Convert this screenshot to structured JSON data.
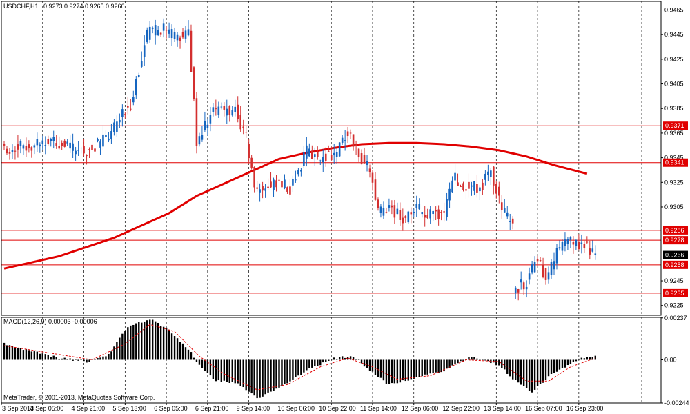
{
  "chart_data": [
    {
      "type": "candlestick",
      "title": "USDCHF,H1",
      "ohlc_readout": [
        "0.9273",
        "0.9274",
        "0.9265",
        "0.9266"
      ],
      "ylim": [
        0.9217,
        0.9472
      ],
      "y_ticks": [
        "0.9465",
        "0.9445",
        "0.9425",
        "0.9405",
        "0.9385",
        "0.9365",
        "0.9345",
        "0.9325",
        "0.9305",
        "0.9245",
        "0.9225"
      ],
      "bid_label": "0.9266",
      "bid_value": 0.9266,
      "horizontal_lines": [
        {
          "value": 0.9371,
          "label": "0.9371"
        },
        {
          "value": 0.9341,
          "label": "0.9341"
        },
        {
          "value": 0.9286,
          "label": "0.9286"
        },
        {
          "value": 0.9278,
          "label": "0.9278"
        },
        {
          "value": 0.9258,
          "label": "0.9258"
        },
        {
          "value": 0.9235,
          "label": "0.9235"
        }
      ],
      "moving_average": {
        "color": "#e00000",
        "points": [
          [
            0,
            0.9255
          ],
          [
            20,
            0.9265
          ],
          [
            40,
            0.928
          ],
          [
            60,
            0.93
          ],
          [
            70,
            0.9314
          ],
          [
            80,
            0.9324
          ],
          [
            90,
            0.9334
          ],
          [
            100,
            0.9344
          ],
          [
            110,
            0.9349
          ],
          [
            120,
            0.9353
          ],
          [
            130,
            0.9356
          ],
          [
            140,
            0.9357
          ],
          [
            150,
            0.9357
          ],
          [
            160,
            0.9356
          ],
          [
            170,
            0.9354
          ],
          [
            180,
            0.9351
          ],
          [
            190,
            0.9346
          ],
          [
            200,
            0.9339
          ],
          [
            212,
            0.9332
          ]
        ]
      },
      "candles_segments": [
        {
          "start": 0,
          "end": 185,
          "keys": [
            [
              0,
              0.9352
            ],
            [
              10,
              0.9356
            ],
            [
              18,
              0.936
            ],
            [
              24,
              0.9352
            ],
            [
              30,
              0.935
            ],
            [
              38,
              0.9362
            ],
            [
              46,
              0.939
            ],
            [
              52,
              0.9445
            ],
            [
              57,
              0.945
            ],
            [
              63,
              0.9442
            ],
            [
              67,
              0.9447
            ],
            [
              70,
              0.936
            ],
            [
              76,
              0.9383
            ],
            [
              84,
              0.9384
            ],
            [
              88,
              0.936
            ],
            [
              91,
              0.9321
            ],
            [
              95,
              0.932
            ],
            [
              99,
              0.9325
            ],
            [
              104,
              0.932
            ],
            [
              110,
              0.935
            ],
            [
              115,
              0.9345
            ],
            [
              121,
              0.935
            ],
            [
              125,
              0.9367
            ],
            [
              129,
              0.9348
            ],
            [
              133,
              0.9335
            ],
            [
              136,
              0.9301
            ],
            [
              140,
              0.9305
            ],
            [
              145,
              0.9295
            ],
            [
              150,
              0.9303
            ],
            [
              155,
              0.9298
            ],
            [
              160,
              0.9301
            ],
            [
              163,
              0.933
            ],
            [
              169,
              0.932
            ],
            [
              174,
              0.9323
            ],
            [
              177,
              0.9335
            ],
            [
              181,
              0.9301
            ],
            [
              185,
              0.9292
            ]
          ]
        },
        {
          "start": 186,
          "end": 215,
          "keys": [
            [
              186,
              0.924
            ],
            [
              190,
              0.9242
            ],
            [
              194,
              0.9265
            ],
            [
              197,
              0.9248
            ],
            [
              201,
              0.9268
            ],
            [
              205,
              0.9277
            ],
            [
              210,
              0.9275
            ],
            [
              215,
              0.9269
            ]
          ]
        }
      ],
      "x_tick_labels": [
        "3 Sep 2013",
        "4 Sep 05:00",
        "4 Sep 21:00",
        "5 Sep 13:00",
        "6 Sep 05:00",
        "6 Sep 21:00",
        "9 Sep 14:00",
        "10 Sep 06:00",
        "10 Sep 22:00",
        "11 Sep 14:00",
        "12 Sep 06:00",
        "12 Sep 22:00",
        "13 Sep 14:00",
        "16 Sep 07:00",
        "16 Sep 23:00"
      ],
      "x_tick_positions": [
        0,
        15,
        30,
        45,
        60,
        75,
        90,
        105,
        120,
        135,
        150,
        165,
        180,
        195,
        210
      ],
      "colors": {
        "up": "#1565c0",
        "down": "#d32f2f",
        "background": "#ffffff",
        "grid": "#000000",
        "level_line": "#e00000",
        "bid_line": "#808080"
      }
    },
    {
      "type": "histogram",
      "title": "MACD(12,26,9) 0.00003 -0.00006",
      "ylim": [
        -0.00244,
        0.0024
      ],
      "y_ticks": [
        "0.00237",
        "0.00",
        "-0.00244"
      ],
      "histogram_keys": [
        [
          0,
          0.0009
        ],
        [
          10,
          0.0005
        ],
        [
          20,
          0.0001
        ],
        [
          30,
          -0.0001
        ],
        [
          38,
          0.0003
        ],
        [
          45,
          0.0019
        ],
        [
          53,
          0.0023
        ],
        [
          60,
          0.0017
        ],
        [
          68,
          0.0004
        ],
        [
          71,
          -0.0003
        ],
        [
          77,
          -0.0012
        ],
        [
          85,
          -0.0013
        ],
        [
          92,
          -0.0022
        ],
        [
          100,
          -0.0016
        ],
        [
          110,
          -0.0006
        ],
        [
          120,
          0.0001
        ],
        [
          127,
          0.0002
        ],
        [
          133,
          -0.0006
        ],
        [
          140,
          -0.0014
        ],
        [
          150,
          -0.001
        ],
        [
          160,
          -0.0006
        ],
        [
          170,
          0.0002
        ],
        [
          180,
          -0.0003
        ],
        [
          186,
          -0.0012
        ],
        [
          192,
          -0.0018
        ],
        [
          200,
          -0.0007
        ],
        [
          210,
          0.0001
        ],
        [
          215,
          0.0002
        ]
      ],
      "signal_keys": [
        [
          0,
          0.0008
        ],
        [
          20,
          0.0003
        ],
        [
          32,
          0.0
        ],
        [
          44,
          0.0009
        ],
        [
          53,
          0.002
        ],
        [
          62,
          0.0016
        ],
        [
          71,
          0.0002
        ],
        [
          80,
          -0.0008
        ],
        [
          92,
          -0.0017
        ],
        [
          103,
          -0.0014
        ],
        [
          115,
          -0.0004
        ],
        [
          125,
          0.0001
        ],
        [
          134,
          -0.0004
        ],
        [
          143,
          -0.0011
        ],
        [
          155,
          -0.0009
        ],
        [
          168,
          0.0
        ],
        [
          180,
          -0.0001
        ],
        [
          190,
          -0.0012
        ],
        [
          198,
          -0.0012
        ],
        [
          206,
          -0.0004
        ],
        [
          215,
          0.0001
        ]
      ],
      "colors": {
        "bars": "#000000",
        "signal": "#e00000"
      }
    }
  ],
  "footer_text": "MetaTrader, © 2001-2013, MetaQuotes Software Corp."
}
